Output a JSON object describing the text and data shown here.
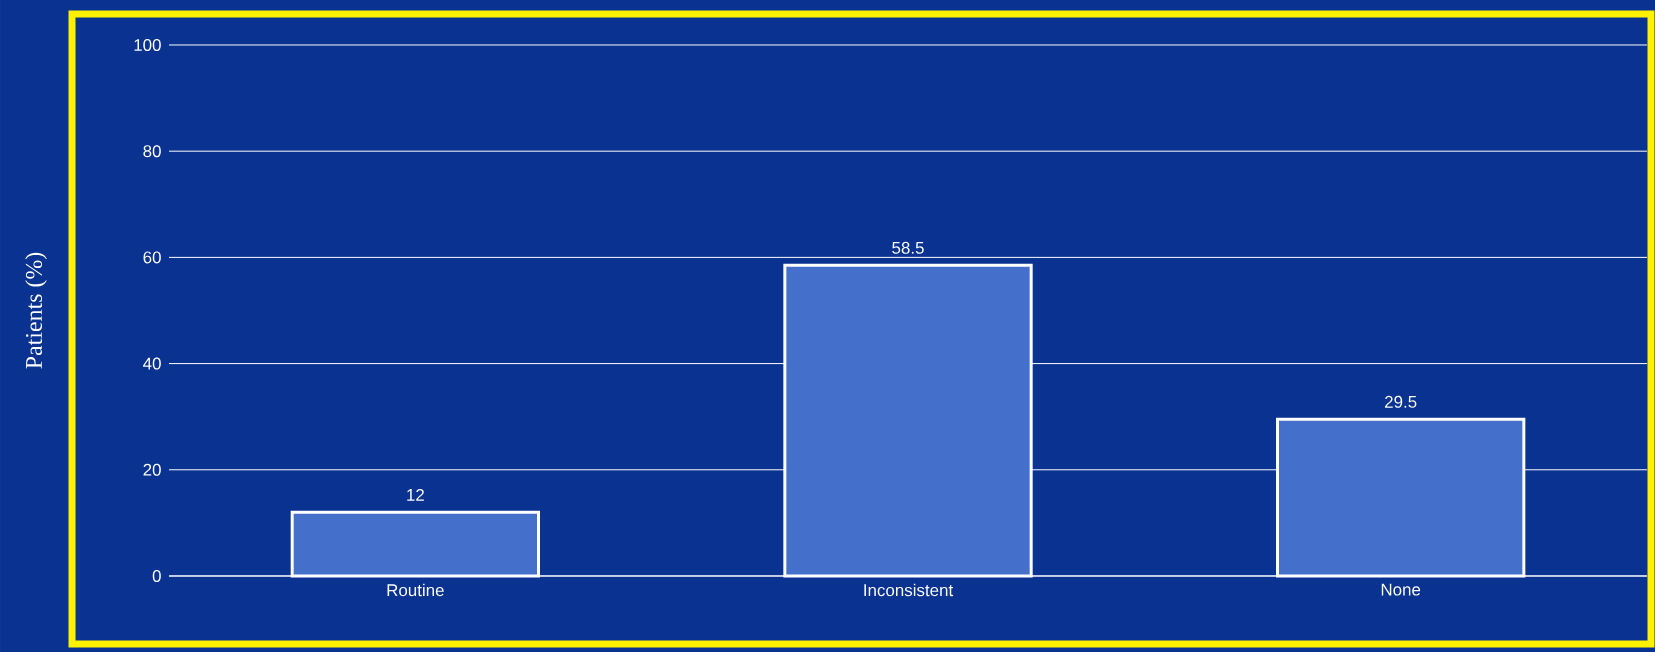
{
  "chart_data": {
    "type": "bar",
    "ylabel": "Patients (%)",
    "categories": [
      "Routine",
      "Inconsistent",
      "None"
    ],
    "values": [
      12,
      58.5,
      29.5
    ],
    "color": "#4470cc",
    "ylim": [
      0,
      100
    ],
    "yticks": [
      0,
      20,
      40,
      60,
      80,
      100
    ],
    "grid": "y",
    "data_labels": true
  }
}
